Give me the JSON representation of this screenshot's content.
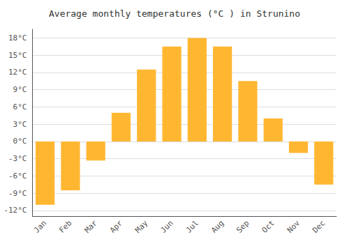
{
  "chart_data": {
    "type": "bar",
    "title": "Average monthly temperatures (°C ) in Strunino",
    "categories": [
      "Jan",
      "Feb",
      "Mar",
      "Apr",
      "May",
      "Jun",
      "Jul",
      "Aug",
      "Sep",
      "Oct",
      "Nov",
      "Dec"
    ],
    "values": [
      -11,
      -8.5,
      -3.3,
      5,
      12.5,
      16.5,
      18,
      16.5,
      10.5,
      4,
      -2,
      -7.5
    ],
    "color": "#FFB732",
    "ylim": [
      -13,
      19.5
    ],
    "yticks": [
      {
        "value": -12,
        "label": "-12°C"
      },
      {
        "value": -9,
        "label": "-9°C"
      },
      {
        "value": -6,
        "label": "-6°C"
      },
      {
        "value": -3,
        "label": "-3°C"
      },
      {
        "value": 0,
        "label": "0°C"
      },
      {
        "value": 3,
        "label": "3°C"
      },
      {
        "value": 6,
        "label": "6°C"
      },
      {
        "value": 9,
        "label": "9°C"
      },
      {
        "value": 12,
        "label": "12°C"
      },
      {
        "value": 15,
        "label": "15°C"
      },
      {
        "value": 18,
        "label": "18°C"
      }
    ],
    "grid": true
  }
}
